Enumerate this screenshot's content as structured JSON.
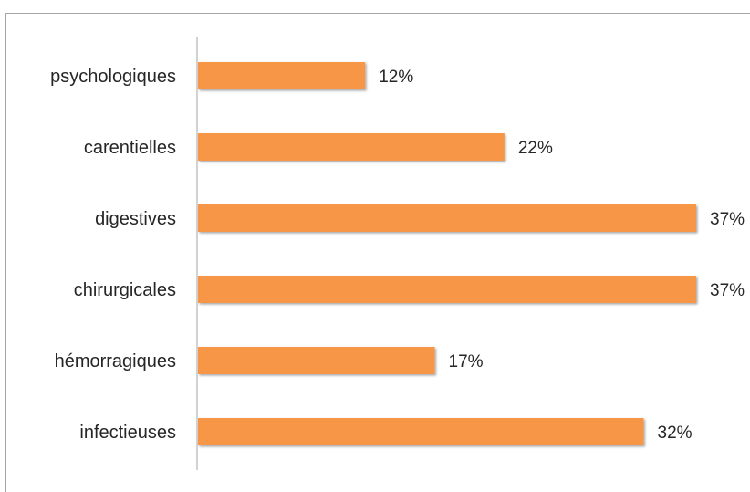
{
  "chart_data": {
    "type": "bar",
    "orientation": "horizontal",
    "categories": [
      "psychologiques",
      "carentielles",
      "digestives",
      "chirurgicales",
      "hémorragiques",
      "infectieuses"
    ],
    "values": [
      12,
      22,
      37,
      37,
      17,
      32
    ],
    "value_labels": [
      "12%",
      "22%",
      "37%",
      "37%",
      "17%",
      "32%"
    ],
    "unit": "%",
    "xlim": [
      0,
      35.7
    ],
    "grid": false,
    "legend": "none",
    "bar_color": "#f79646"
  }
}
